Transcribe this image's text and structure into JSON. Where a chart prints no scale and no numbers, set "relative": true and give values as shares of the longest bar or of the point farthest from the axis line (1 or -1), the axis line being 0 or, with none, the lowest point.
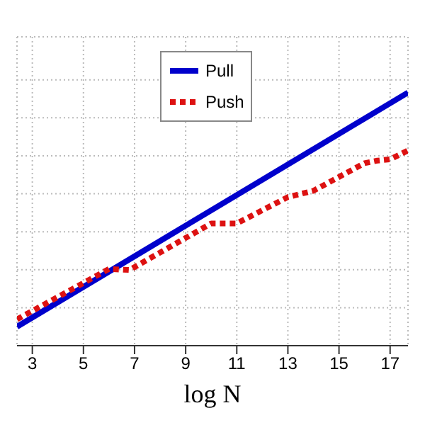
{
  "chart_data": {
    "type": "line",
    "xlabel": "log N",
    "relative": true,
    "xlim": [
      2.4,
      17.7
    ],
    "xticks": [
      3,
      5,
      7,
      9,
      11,
      13,
      15,
      17
    ],
    "grid": true,
    "legend": "top",
    "marker": "none",
    "series": [
      {
        "name": "Pull",
        "color": "#0000cc",
        "line_style": "solid",
        "x": [
          2.4,
          17.7
        ],
        "values": [
          0.075,
          1
        ]
      },
      {
        "name": "Push",
        "color": "#dd1111",
        "line_style": "dotted",
        "x": [
          2.4,
          6,
          6.8,
          10,
          11,
          13,
          14,
          16,
          16.5,
          17,
          17.7
        ],
        "values": [
          0.104,
          0.303,
          0.299,
          0.483,
          0.483,
          0.587,
          0.612,
          0.721,
          0.731,
          0.736,
          0.771
        ]
      }
    ]
  }
}
